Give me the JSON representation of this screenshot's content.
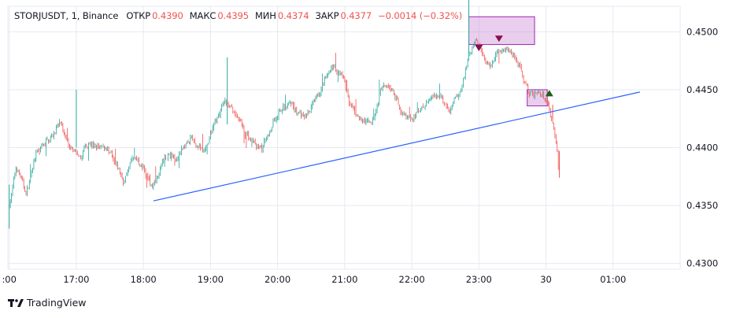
{
  "legend": {
    "symbol": "STORJUSDT, 1, Binance",
    "open_label": "ОТКР",
    "open": "0.4390",
    "high_label": "МАКС",
    "high": "0.4395",
    "low_label": "МИН",
    "low": "0.4374",
    "close_label": "ЗАКР",
    "close": "0.4377",
    "change": "−0.0014 (−0.32%)"
  },
  "brand": {
    "name": "TradingView",
    "logo_icon": "tradingview-logo-icon"
  },
  "colors": {
    "up": "#26a69a",
    "down": "#ef5350",
    "trendline": "#2962ff",
    "zone_fill": "#ce93d8",
    "zone_border": "#9c27b0",
    "marker_down": "#880e4f",
    "marker_up": "#1b5e20",
    "grid": "#e6e9f0"
  },
  "chart_data": {
    "type": "candlestick",
    "y_ticks": [
      "0.4300",
      "0.4350",
      "0.4400",
      "0.4450",
      "0.4500"
    ],
    "ylim": [
      0.4295,
      0.4522
    ],
    "x_ticks": [
      ":00",
      "17:00",
      "18:00",
      "19:00",
      "20:00",
      "21:00",
      "22:00",
      "23:00",
      "30",
      "01:00"
    ],
    "x_tick_hours": [
      16,
      17,
      18,
      19,
      20,
      21,
      22,
      23,
      24,
      25
    ],
    "xlim_hours": [
      15.98,
      26.0
    ],
    "grid": true,
    "price_path": [
      [
        16.0,
        0.435
      ],
      [
        16.1,
        0.4385
      ],
      [
        16.25,
        0.436
      ],
      [
        16.4,
        0.4395
      ],
      [
        16.55,
        0.4405
      ],
      [
        16.75,
        0.442
      ],
      [
        16.9,
        0.44
      ],
      [
        17.05,
        0.439
      ],
      [
        17.15,
        0.4405
      ],
      [
        17.3,
        0.44
      ],
      [
        17.45,
        0.44
      ],
      [
        17.6,
        0.4385
      ],
      [
        17.7,
        0.437
      ],
      [
        17.85,
        0.4395
      ],
      [
        18.0,
        0.438
      ],
      [
        18.12,
        0.4365
      ],
      [
        18.3,
        0.4392
      ],
      [
        18.5,
        0.4392
      ],
      [
        18.7,
        0.4408
      ],
      [
        18.9,
        0.4396
      ],
      [
        19.05,
        0.442
      ],
      [
        19.2,
        0.444
      ],
      [
        19.35,
        0.443
      ],
      [
        19.55,
        0.441
      ],
      [
        19.75,
        0.4398
      ],
      [
        19.95,
        0.4425
      ],
      [
        20.15,
        0.4438
      ],
      [
        20.4,
        0.4425
      ],
      [
        20.6,
        0.4445
      ],
      [
        20.8,
        0.447
      ],
      [
        20.95,
        0.4465
      ],
      [
        21.05,
        0.444
      ],
      [
        21.2,
        0.4425
      ],
      [
        21.4,
        0.442
      ],
      [
        21.55,
        0.4455
      ],
      [
        21.7,
        0.445
      ],
      [
        21.85,
        0.443
      ],
      [
        22.0,
        0.4425
      ],
      [
        22.2,
        0.4438
      ],
      [
        22.4,
        0.4445
      ],
      [
        22.55,
        0.443
      ],
      [
        22.75,
        0.4455
      ],
      [
        22.85,
        0.448
      ],
      [
        22.95,
        0.4495
      ],
      [
        23.05,
        0.448
      ],
      [
        23.15,
        0.447
      ],
      [
        23.3,
        0.4485
      ],
      [
        23.45,
        0.4485
      ],
      [
        23.6,
        0.447
      ],
      [
        23.75,
        0.4445
      ],
      [
        23.9,
        0.4448
      ],
      [
        24.0,
        0.444
      ],
      [
        24.12,
        0.4415
      ],
      [
        24.18,
        0.4385
      ],
      [
        24.2,
        0.4377
      ]
    ],
    "price_max": 0.453,
    "price_min": 0.4328,
    "trendline": {
      "start": [
        18.15,
        0.4354
      ],
      "end": [
        25.4,
        0.4448
      ]
    },
    "zones": [
      {
        "name": "resistance-zone",
        "x": [
          22.85,
          23.83
        ],
        "y": [
          0.4489,
          0.4513
        ]
      },
      {
        "name": "support-zone",
        "x": [
          23.72,
          24.02
        ],
        "y": [
          0.4436,
          0.445
        ]
      }
    ],
    "markers": [
      {
        "type": "sell",
        "x": 23.0,
        "price": 0.4486
      },
      {
        "type": "sell",
        "x": 23.3,
        "price": 0.4494
      },
      {
        "type": "buy",
        "x": 24.05,
        "price": 0.4447
      }
    ]
  }
}
